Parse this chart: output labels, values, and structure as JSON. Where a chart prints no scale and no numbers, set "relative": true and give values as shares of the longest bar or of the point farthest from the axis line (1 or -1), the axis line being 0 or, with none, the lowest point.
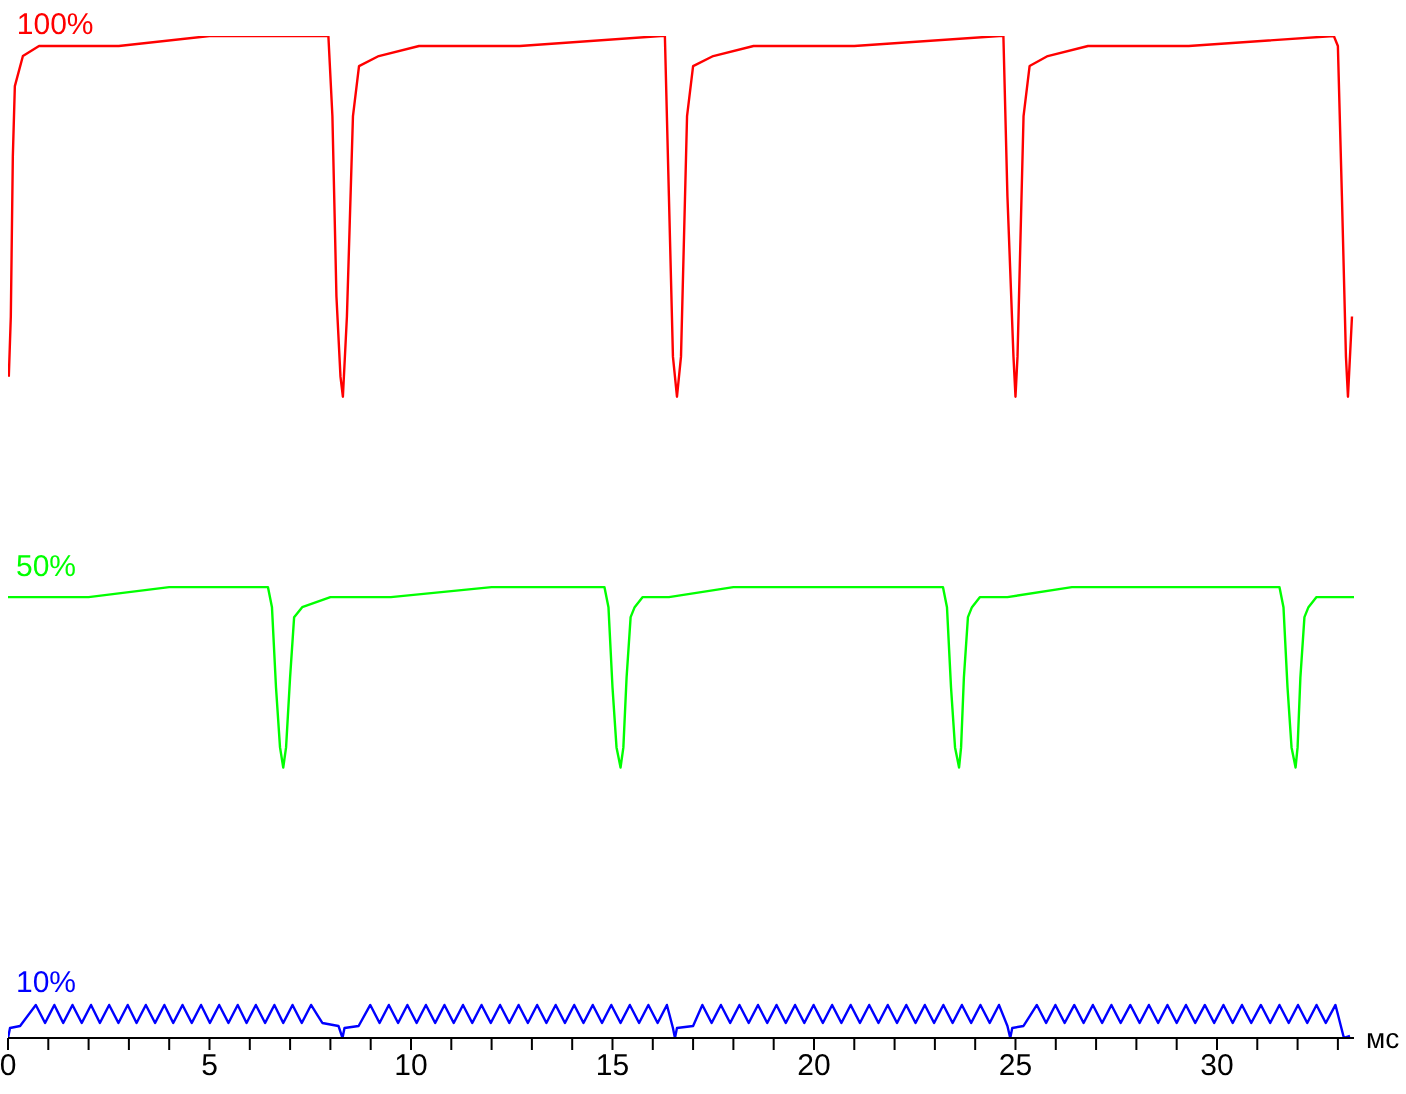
{
  "chart_data": {
    "type": "line",
    "relative": true,
    "xlabel": "мс",
    "xlim": [
      0,
      33.4
    ],
    "marker": "none",
    "xticks": [
      0,
      {
        "value": 1,
        "label": null
      },
      {
        "value": 2,
        "label": null
      },
      {
        "value": 3,
        "label": null
      },
      {
        "value": 4,
        "label": null
      },
      5,
      {
        "value": 6,
        "label": null
      },
      {
        "value": 7,
        "label": null
      },
      {
        "value": 8,
        "label": null
      },
      {
        "value": 9,
        "label": null
      },
      10,
      {
        "value": 11,
        "label": null
      },
      {
        "value": 12,
        "label": null
      },
      {
        "value": 13,
        "label": null
      },
      {
        "value": 14,
        "label": null
      },
      15,
      {
        "value": 16,
        "label": null
      },
      {
        "value": 17,
        "label": null
      },
      {
        "value": 18,
        "label": null
      },
      {
        "value": 19,
        "label": null
      },
      20,
      {
        "value": 21,
        "label": null
      },
      {
        "value": 22,
        "label": null
      },
      {
        "value": 23,
        "label": null
      },
      {
        "value": 24,
        "label": null
      },
      25,
      {
        "value": 26,
        "label": null
      },
      {
        "value": 27,
        "label": null
      },
      {
        "value": 28,
        "label": null
      },
      {
        "value": 29,
        "label": null
      },
      30,
      {
        "value": 31,
        "label": null
      },
      {
        "value": 32,
        "label": null
      },
      {
        "value": 33,
        "label": null
      }
    ],
    "series": [
      {
        "name": "100%",
        "color": "#ff0000",
        "x": [
          0.02,
          0.07,
          0.12,
          0.17,
          0.37,
          0.77,
          1.5,
          2.75,
          5,
          7.7,
          7.95,
          8.05,
          8.15,
          8.25,
          8.31,
          8.41,
          8.56,
          8.71,
          9.2,
          10.2,
          12.7,
          16.2,
          16.3,
          16.4,
          16.5,
          16.6,
          16.7,
          16.85,
          17.0,
          17.5,
          18.5,
          21,
          24.6,
          24.7,
          24.8,
          24.95,
          25.0,
          25.05,
          25.2,
          25.35,
          25.8,
          26.8,
          29.3,
          32.9,
          33.0,
          33.1,
          33.2,
          33.25,
          33.35
        ],
        "values": [
          0.66,
          0.72,
          0.88,
          0.95,
          0.98,
          0.99,
          0.99,
          0.99,
          1.0,
          1.0,
          1.0,
          0.92,
          0.74,
          0.66,
          0.64,
          0.72,
          0.92,
          0.97,
          0.98,
          0.99,
          0.99,
          1.0,
          1.0,
          0.84,
          0.68,
          0.64,
          0.68,
          0.92,
          0.97,
          0.98,
          0.99,
          0.99,
          1.0,
          1.0,
          0.84,
          0.68,
          0.64,
          0.68,
          0.92,
          0.97,
          0.98,
          0.99,
          0.99,
          1.0,
          0.99,
          0.84,
          0.68,
          0.64,
          0.72
        ]
      },
      {
        "name": "50%",
        "color": "#00ff00",
        "x": [
          0,
          2,
          4,
          6.45,
          6.55,
          6.65,
          6.75,
          6.83,
          6.9,
          7.0,
          7.1,
          7.3,
          8,
          9.5,
          12,
          14.8,
          14.9,
          15.0,
          15.1,
          15.2,
          15.27,
          15.35,
          15.45,
          15.55,
          15.75,
          16.4,
          18,
          20.5,
          23.2,
          23.3,
          23.4,
          23.5,
          23.6,
          23.65,
          23.72,
          23.82,
          23.92,
          24.12,
          24.8,
          26.4,
          28.9,
          31.55,
          31.65,
          31.75,
          31.85,
          31.95,
          32.0,
          32.07,
          32.17,
          32.27,
          32.47,
          33.4
        ],
        "values": [
          0.44,
          0.44,
          0.45,
          0.45,
          0.43,
          0.35,
          0.29,
          0.27,
          0.29,
          0.36,
          0.42,
          0.43,
          0.44,
          0.44,
          0.45,
          0.45,
          0.43,
          0.35,
          0.29,
          0.27,
          0.29,
          0.36,
          0.42,
          0.43,
          0.44,
          0.44,
          0.45,
          0.45,
          0.45,
          0.43,
          0.35,
          0.29,
          0.27,
          0.29,
          0.36,
          0.42,
          0.43,
          0.44,
          0.44,
          0.45,
          0.45,
          0.45,
          0.43,
          0.35,
          0.29,
          0.27,
          0.29,
          0.36,
          0.42,
          0.43,
          0.44,
          0.44
        ]
      },
      {
        "name": "10%",
        "color": "#0000ff",
        "x": [
          0,
          0.05,
          0.3,
          0.69,
          0.92,
          1.15,
          1.37,
          1.6,
          1.83,
          2.06,
          2.28,
          2.51,
          2.74,
          2.97,
          3.19,
          3.42,
          3.65,
          3.88,
          4.1,
          4.33,
          4.56,
          4.79,
          5.01,
          5.24,
          5.47,
          5.7,
          5.92,
          6.15,
          6.38,
          6.61,
          6.83,
          7.06,
          7.29,
          7.52,
          7.8,
          8.2,
          8.3,
          8.35,
          8.7,
          8.99,
          9.22,
          9.45,
          9.68,
          9.91,
          10.14,
          10.37,
          10.6,
          10.83,
          11.06,
          11.29,
          11.52,
          11.75,
          11.98,
          12.21,
          12.44,
          12.67,
          12.9,
          13.13,
          13.36,
          13.59,
          13.82,
          14.05,
          14.28,
          14.51,
          14.74,
          14.97,
          15.2,
          15.43,
          15.66,
          15.89,
          16.12,
          16.35,
          16.5,
          16.55,
          16.6,
          17.0,
          17.23,
          17.46,
          17.69,
          17.92,
          18.15,
          18.38,
          18.61,
          18.84,
          19.07,
          19.3,
          19.53,
          19.76,
          19.99,
          20.22,
          20.45,
          20.68,
          20.91,
          21.14,
          21.37,
          21.6,
          21.83,
          22.06,
          22.29,
          22.52,
          22.75,
          22.98,
          23.21,
          23.44,
          23.67,
          23.9,
          24.13,
          24.36,
          24.59,
          24.8,
          24.87,
          24.92,
          25.2,
          25.53,
          25.76,
          25.99,
          26.22,
          26.46,
          26.69,
          26.92,
          27.15,
          27.38,
          27.61,
          27.85,
          28.08,
          28.31,
          28.54,
          28.77,
          29.0,
          29.23,
          29.46,
          29.7,
          29.93,
          30.16,
          30.39,
          30.62,
          30.85,
          31.09,
          31.32,
          31.55,
          31.78,
          32.01,
          32.24,
          32.47,
          32.7,
          32.94,
          33.15,
          33.3
        ],
        "values": [
          0,
          0.01,
          0.012,
          0.033,
          0.015,
          0.033,
          0.015,
          0.033,
          0.015,
          0.033,
          0.015,
          0.033,
          0.015,
          0.033,
          0.015,
          0.033,
          0.015,
          0.033,
          0.015,
          0.033,
          0.015,
          0.033,
          0.015,
          0.033,
          0.015,
          0.033,
          0.015,
          0.033,
          0.015,
          0.033,
          0.015,
          0.033,
          0.015,
          0.033,
          0.015,
          0.012,
          0,
          0.01,
          0.012,
          0.033,
          0.015,
          0.033,
          0.015,
          0.033,
          0.015,
          0.033,
          0.015,
          0.033,
          0.015,
          0.033,
          0.015,
          0.033,
          0.015,
          0.033,
          0.015,
          0.033,
          0.015,
          0.033,
          0.015,
          0.033,
          0.015,
          0.033,
          0.015,
          0.033,
          0.015,
          0.033,
          0.015,
          0.033,
          0.015,
          0.033,
          0.015,
          0.033,
          0.01,
          0,
          0.01,
          0.012,
          0.033,
          0.015,
          0.033,
          0.015,
          0.033,
          0.015,
          0.033,
          0.015,
          0.033,
          0.015,
          0.033,
          0.015,
          0.033,
          0.015,
          0.033,
          0.015,
          0.033,
          0.015,
          0.033,
          0.015,
          0.033,
          0.015,
          0.033,
          0.015,
          0.033,
          0.015,
          0.033,
          0.015,
          0.033,
          0.015,
          0.033,
          0.015,
          0.033,
          0.012,
          0,
          0.01,
          0.012,
          0.033,
          0.015,
          0.033,
          0.015,
          0.033,
          0.015,
          0.033,
          0.015,
          0.033,
          0.015,
          0.033,
          0.015,
          0.033,
          0.015,
          0.033,
          0.015,
          0.033,
          0.015,
          0.033,
          0.015,
          0.033,
          0.015,
          0.033,
          0.015,
          0.033,
          0.015,
          0.033,
          0.015,
          0.033,
          0.015,
          0.033,
          0.015,
          0.033,
          0,
          0.002
        ]
      }
    ]
  }
}
